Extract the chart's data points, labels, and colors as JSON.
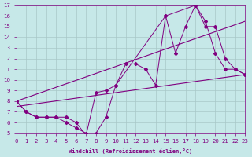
{
  "xlabel": "Windchill (Refroidissement éolien,°C)",
  "xlim": [
    0,
    23
  ],
  "ylim": [
    5,
    17
  ],
  "xticks": [
    0,
    1,
    2,
    3,
    4,
    5,
    6,
    7,
    8,
    9,
    10,
    11,
    12,
    13,
    14,
    15,
    16,
    17,
    18,
    19,
    20,
    21,
    22,
    23
  ],
  "yticks": [
    5,
    6,
    7,
    8,
    9,
    10,
    11,
    12,
    13,
    14,
    15,
    16,
    17
  ],
  "bg_color": "#c6e8e8",
  "line_color": "#800080",
  "grid_color": "#a8c8c8",
  "line1_x": [
    0,
    1,
    2,
    3,
    4,
    5,
    6,
    7,
    8,
    9,
    10,
    11,
    12,
    13,
    14,
    15,
    16,
    17,
    18,
    19,
    20,
    21,
    22,
    23
  ],
  "line1_y": [
    8,
    7,
    6.5,
    6.5,
    6.5,
    6,
    5.5,
    5,
    5,
    6.5,
    9.5,
    11.5,
    11.5,
    11,
    9.5,
    16,
    12.5,
    15,
    17,
    15.5,
    12.5,
    11,
    11,
    10.5
  ],
  "line2_x": [
    0,
    1,
    2,
    3,
    4,
    5,
    6,
    7,
    8,
    9,
    10,
    15,
    18,
    19,
    20,
    21,
    22,
    23
  ],
  "line2_y": [
    8,
    7,
    6.5,
    6.5,
    6.5,
    6.5,
    6,
    4.8,
    8.8,
    9,
    9.5,
    16,
    17,
    15,
    15,
    12,
    11,
    10.5
  ],
  "line3_x": [
    0,
    23
  ],
  "line3_y": [
    7.5,
    10.5
  ],
  "line4_x": [
    0,
    23
  ],
  "line4_y": [
    8.0,
    15.5
  ]
}
